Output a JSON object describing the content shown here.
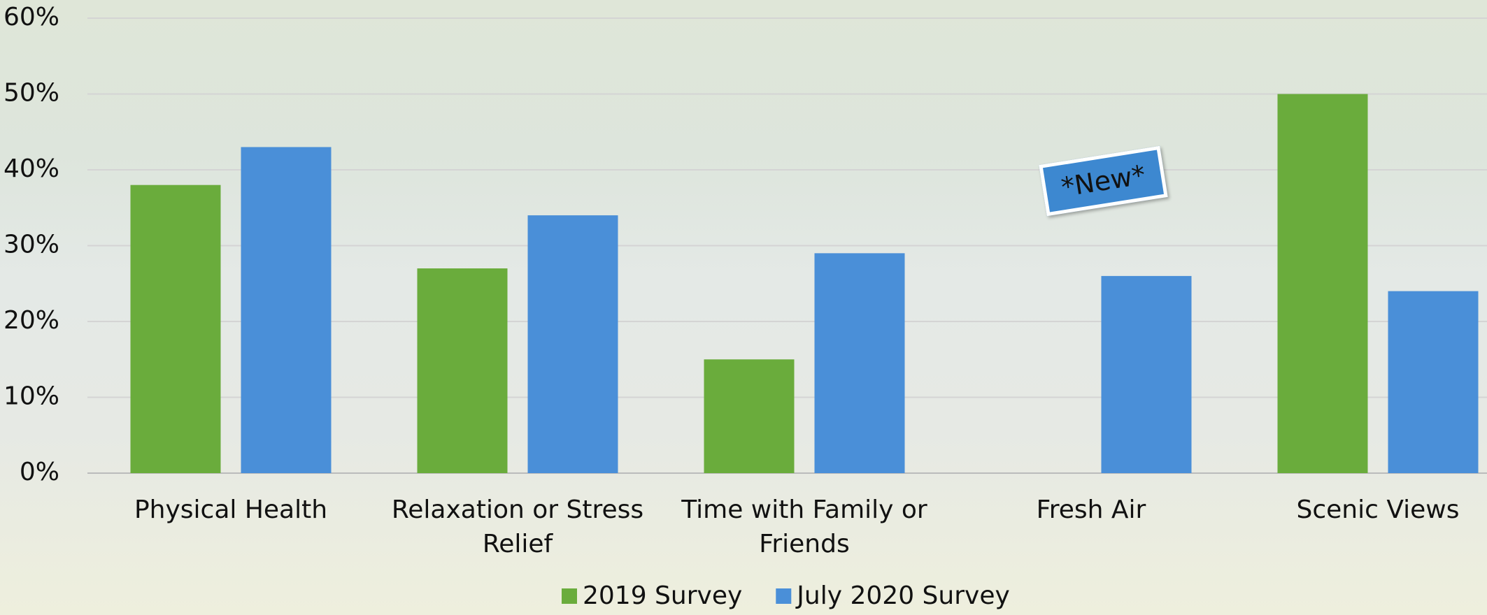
{
  "chart_data": {
    "type": "bar",
    "categories": [
      "Physical Health",
      "Relaxation or Stress Relief",
      "Time with Family or Friends",
      "Fresh Air",
      "Scenic Views"
    ],
    "series": [
      {
        "name": "2019 Survey",
        "color": "#6aac3c",
        "values": [
          38,
          27,
          15,
          null,
          50
        ]
      },
      {
        "name": "July 2020 Survey",
        "color": "#4a8fd8",
        "values": [
          43,
          34,
          29,
          26,
          24
        ]
      }
    ],
    "ylim": [
      0,
      60
    ],
    "yticks": [
      {
        "value": 0,
        "label": "0%"
      },
      {
        "value": 10,
        "label": "10%"
      },
      {
        "value": 20,
        "label": "20%"
      },
      {
        "value": 30,
        "label": "30%"
      },
      {
        "value": 40,
        "label": "40%"
      },
      {
        "value": 50,
        "label": "50%"
      },
      {
        "value": 60,
        "label": "60%"
      }
    ],
    "grid": true,
    "annotations": [
      "*New*"
    ]
  }
}
